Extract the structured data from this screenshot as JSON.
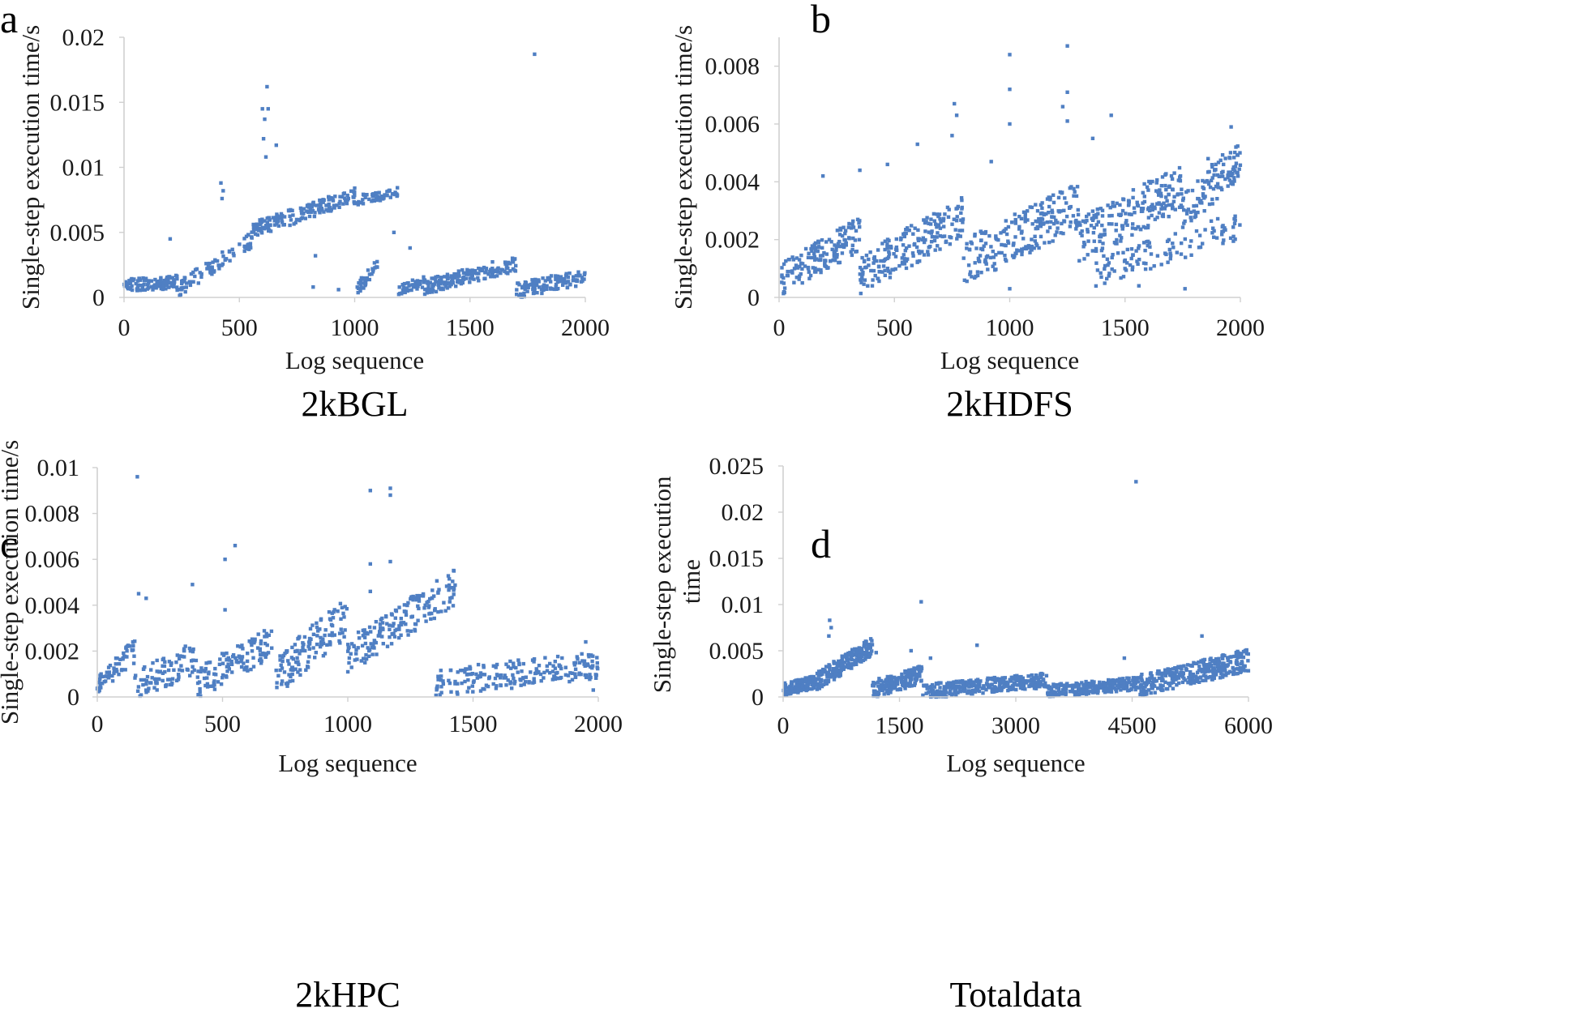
{
  "chart_data": [
    {
      "type": "scatter",
      "panel_label": "a",
      "caption": "2kBGL",
      "xlabel": "Log sequence",
      "ylabel": "Single-step execution time/s",
      "xlim": [
        0,
        2000
      ],
      "ylim": [
        0,
        0.02
      ],
      "xticks": [
        "0",
        "500",
        "1000",
        "1500",
        "2000"
      ],
      "yticks": [
        "0",
        "0.005",
        "0.01",
        "0.015",
        "0.02"
      ],
      "grid": false,
      "series_color": "#4f7fc3",
      "segments": [
        {
          "x": [
            0,
            230
          ],
          "y": [
            0.0009,
            0.0012
          ],
          "spread": 0.0005,
          "n": 110
        },
        {
          "x": [
            230,
            560
          ],
          "y": [
            0.0006,
            0.0045
          ],
          "spread": 0.0006,
          "n": 90
        },
        {
          "x": [
            560,
            1000
          ],
          "y": [
            0.0052,
            0.0078
          ],
          "spread": 0.0006,
          "n": 170
        },
        {
          "x": [
            1000,
            1190
          ],
          "y": [
            0.0074,
            0.0081
          ],
          "spread": 0.0004,
          "n": 50
        },
        {
          "x": [
            1010,
            1100
          ],
          "y": [
            0.0006,
            0.0025
          ],
          "spread": 0.0005,
          "n": 35
        },
        {
          "x": [
            1190,
            1300
          ],
          "y": [
            0.0006,
            0.0012
          ],
          "spread": 0.0004,
          "n": 40
        },
        {
          "x": [
            1300,
            1700
          ],
          "y": [
            0.0008,
            0.0026
          ],
          "spread": 0.0006,
          "n": 170
        },
        {
          "x": [
            1700,
            2000
          ],
          "y": [
            0.0005,
            0.0016
          ],
          "spread": 0.0006,
          "n": 120
        }
      ],
      "outliers": [
        {
          "x": 420,
          "y": 0.0088
        },
        {
          "x": 430,
          "y": 0.0082
        },
        {
          "x": 425,
          "y": 0.0076
        },
        {
          "x": 600,
          "y": 0.0145
        },
        {
          "x": 610,
          "y": 0.0137
        },
        {
          "x": 620,
          "y": 0.0162
        },
        {
          "x": 625,
          "y": 0.0145
        },
        {
          "x": 605,
          "y": 0.0122
        },
        {
          "x": 660,
          "y": 0.0117
        },
        {
          "x": 615,
          "y": 0.0108
        },
        {
          "x": 1780,
          "y": 0.0187
        },
        {
          "x": 200,
          "y": 0.0045
        },
        {
          "x": 830,
          "y": 0.0032
        },
        {
          "x": 1170,
          "y": 0.005
        },
        {
          "x": 1240,
          "y": 0.0038
        },
        {
          "x": 930,
          "y": 0.0006
        },
        {
          "x": 820,
          "y": 0.0008
        }
      ]
    },
    {
      "type": "scatter",
      "panel_label": "b",
      "caption": "2kHDFS",
      "xlabel": "Log sequence",
      "ylabel": "Single-step execution time/s",
      "xlim": [
        0,
        2000
      ],
      "ylim": [
        0,
        0.009
      ],
      "xticks": [
        "0",
        "500",
        "1000",
        "1500",
        "2000"
      ],
      "yticks": [
        "0",
        "0.002",
        "0.004",
        "0.006",
        "0.008"
      ],
      "ytick_values": [
        0,
        0.002,
        0.004,
        0.006,
        0.008
      ],
      "grid": false,
      "series_color": "#4f7fc3",
      "segments": [
        {
          "x": [
            0,
            350
          ],
          "y": [
            0.0006,
            0.0022
          ],
          "spread": 0.0006,
          "n": 160
        },
        {
          "x": [
            350,
            800
          ],
          "y": [
            0.0008,
            0.0028
          ],
          "spread": 0.0007,
          "n": 200
        },
        {
          "x": [
            800,
            1300
          ],
          "y": [
            0.0012,
            0.0032
          ],
          "spread": 0.0008,
          "n": 220
        },
        {
          "x": [
            1300,
            1750
          ],
          "y": [
            0.002,
            0.0038
          ],
          "spread": 0.0008,
          "n": 200
        },
        {
          "x": [
            1350,
            2000
          ],
          "y": [
            0.0008,
            0.0025
          ],
          "spread": 0.0005,
          "n": 110
        },
        {
          "x": [
            1750,
            2000
          ],
          "y": [
            0.003,
            0.0048
          ],
          "spread": 0.0007,
          "n": 110
        }
      ],
      "outliers": [
        {
          "x": 1000,
          "y": 0.0084
        },
        {
          "x": 1000,
          "y": 0.0072
        },
        {
          "x": 1000,
          "y": 0.006
        },
        {
          "x": 1250,
          "y": 0.0087
        },
        {
          "x": 1250,
          "y": 0.0071
        },
        {
          "x": 1230,
          "y": 0.0066
        },
        {
          "x": 1250,
          "y": 0.0061
        },
        {
          "x": 760,
          "y": 0.0067
        },
        {
          "x": 770,
          "y": 0.0063
        },
        {
          "x": 750,
          "y": 0.0056
        },
        {
          "x": 1360,
          "y": 0.0055
        },
        {
          "x": 1440,
          "y": 0.0063
        },
        {
          "x": 600,
          "y": 0.0053
        },
        {
          "x": 350,
          "y": 0.0044
        },
        {
          "x": 470,
          "y": 0.0046
        },
        {
          "x": 190,
          "y": 0.0042
        },
        {
          "x": 1960,
          "y": 0.0059
        },
        {
          "x": 1860,
          "y": 0.0048
        },
        {
          "x": 920,
          "y": 0.0047
        },
        {
          "x": 1000,
          "y": 0.0003
        },
        {
          "x": 1760,
          "y": 0.0003
        },
        {
          "x": 1560,
          "y": 0.0004
        }
      ]
    },
    {
      "type": "scatter",
      "panel_label": "c",
      "caption": "2kHPC",
      "xlabel": "Log sequence",
      "ylabel": "Single-step execution time/s",
      "xlim": [
        0,
        2000
      ],
      "ylim": [
        0,
        0.01
      ],
      "xticks": [
        "0",
        "500",
        "1000",
        "1500",
        "2000"
      ],
      "yticks": [
        "0",
        "0.002",
        "0.004",
        "0.006",
        "0.008",
        "0.01"
      ],
      "grid": false,
      "series_color": "#4f7fc3",
      "segments": [
        {
          "x": [
            0,
            150
          ],
          "y": [
            0.0006,
            0.002
          ],
          "spread": 0.0005,
          "n": 60
        },
        {
          "x": [
            150,
            400
          ],
          "y": [
            0.0004,
            0.0018
          ],
          "spread": 0.0007,
          "n": 90
        },
        {
          "x": [
            400,
            700
          ],
          "y": [
            0.0006,
            0.0024
          ],
          "spread": 0.0007,
          "n": 120
        },
        {
          "x": [
            700,
            1000
          ],
          "y": [
            0.0008,
            0.0035
          ],
          "spread": 0.0009,
          "n": 130
        },
        {
          "x": [
            1000,
            1430
          ],
          "y": [
            0.0018,
            0.0048
          ],
          "spread": 0.0008,
          "n": 180
        },
        {
          "x": [
            1350,
            2000
          ],
          "y": [
            0.0006,
            0.0014
          ],
          "spread": 0.0006,
          "n": 210
        }
      ],
      "outliers": [
        {
          "x": 160,
          "y": 0.0096
        },
        {
          "x": 1090,
          "y": 0.009
        },
        {
          "x": 1170,
          "y": 0.0091
        },
        {
          "x": 1170,
          "y": 0.0088
        },
        {
          "x": 550,
          "y": 0.0066
        },
        {
          "x": 510,
          "y": 0.006
        },
        {
          "x": 380,
          "y": 0.0049
        },
        {
          "x": 1090,
          "y": 0.0058
        },
        {
          "x": 1170,
          "y": 0.0059
        },
        {
          "x": 510,
          "y": 0.0038
        },
        {
          "x": 165,
          "y": 0.0045
        },
        {
          "x": 195,
          "y": 0.0043
        },
        {
          "x": 1090,
          "y": 0.0046
        },
        {
          "x": 1980,
          "y": 0.0003
        },
        {
          "x": 1950,
          "y": 0.0024
        }
      ]
    },
    {
      "type": "scatter",
      "panel_label": "d",
      "caption": "Totaldata",
      "xlabel": "Log sequence",
      "ylabel": "Single-step execution time",
      "xlim": [
        0,
        6000
      ],
      "ylim": [
        0,
        0.025
      ],
      "xticks": [
        "0",
        "1500",
        "3000",
        "4500",
        "6000"
      ],
      "yticks": [
        "0",
        "0.005",
        "0.01",
        "0.015",
        "0.02",
        "0.025"
      ],
      "grid": false,
      "series_color": "#4f7fc3",
      "segments": [
        {
          "x": [
            0,
            400
          ],
          "y": [
            0.0008,
            0.0016
          ],
          "spread": 0.0007,
          "n": 130
        },
        {
          "x": [
            400,
            1150
          ],
          "y": [
            0.0015,
            0.0055
          ],
          "spread": 0.001,
          "n": 220
        },
        {
          "x": [
            1150,
            1800
          ],
          "y": [
            0.0008,
            0.0025
          ],
          "spread": 0.001,
          "n": 170
        },
        {
          "x": [
            1800,
            3400
          ],
          "y": [
            0.0006,
            0.0018
          ],
          "spread": 0.0008,
          "n": 320
        },
        {
          "x": [
            3400,
            4600
          ],
          "y": [
            0.0006,
            0.0015
          ],
          "spread": 0.0007,
          "n": 250
        },
        {
          "x": [
            4600,
            6000
          ],
          "y": [
            0.0012,
            0.004
          ],
          "spread": 0.0012,
          "n": 330
        }
      ],
      "outliers": [
        {
          "x": 4550,
          "y": 0.0233
        },
        {
          "x": 1780,
          "y": 0.0103
        },
        {
          "x": 600,
          "y": 0.0083
        },
        {
          "x": 620,
          "y": 0.0075
        },
        {
          "x": 590,
          "y": 0.0066
        },
        {
          "x": 5400,
          "y": 0.0066
        },
        {
          "x": 2500,
          "y": 0.0056
        },
        {
          "x": 1200,
          "y": 0.0048
        },
        {
          "x": 1650,
          "y": 0.005
        },
        {
          "x": 1900,
          "y": 0.0042
        },
        {
          "x": 4400,
          "y": 0.0042
        }
      ]
    }
  ]
}
